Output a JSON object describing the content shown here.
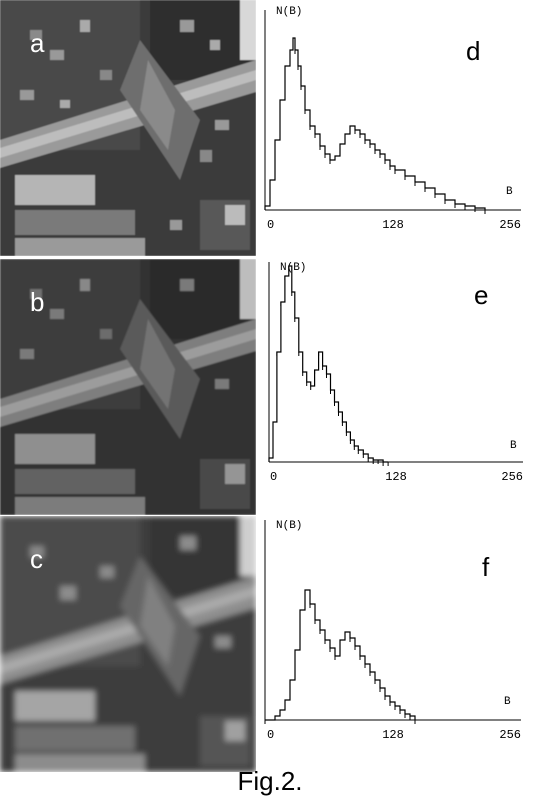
{
  "figure": {
    "caption": "Fig.2.",
    "panels": [
      {
        "image_label": "a",
        "histogram_label": "d"
      },
      {
        "image_label": "b",
        "histogram_label": "e"
      },
      {
        "image_label": "c",
        "histogram_label": "f"
      }
    ]
  },
  "chart_data": [
    {
      "type": "line",
      "title": "",
      "ylabel": "N(B)",
      "xlabel": "B",
      "x_ticks": [
        "0",
        "128",
        "256"
      ],
      "xlim": [
        0,
        256
      ],
      "ylim": [
        0,
        1
      ],
      "series": [
        {
          "x": [
            0,
            5,
            10,
            15,
            20,
            25,
            28,
            30,
            33,
            36,
            40,
            45,
            50,
            55,
            60,
            65,
            70,
            75,
            80,
            85,
            90,
            95,
            100,
            105,
            110,
            115,
            120,
            125,
            130,
            140,
            150,
            160,
            170,
            180,
            190,
            200,
            210,
            220
          ],
          "values": [
            0.02,
            0.15,
            0.35,
            0.55,
            0.72,
            0.8,
            0.86,
            0.8,
            0.72,
            0.62,
            0.5,
            0.42,
            0.38,
            0.32,
            0.28,
            0.25,
            0.27,
            0.33,
            0.38,
            0.42,
            0.4,
            0.38,
            0.35,
            0.33,
            0.3,
            0.28,
            0.25,
            0.22,
            0.2,
            0.17,
            0.14,
            0.11,
            0.08,
            0.05,
            0.03,
            0.02,
            0.01,
            0.0
          ]
        }
      ]
    },
    {
      "type": "line",
      "title": "",
      "ylabel": "N(B)",
      "xlabel": "B",
      "x_ticks": [
        "0",
        "128",
        "256"
      ],
      "xlim": [
        0,
        256
      ],
      "ylim": [
        0,
        1
      ],
      "series": [
        {
          "x": [
            0,
            4,
            8,
            12,
            16,
            20,
            23,
            26,
            30,
            34,
            38,
            42,
            46,
            50,
            54,
            58,
            62,
            66,
            70,
            74,
            78,
            82,
            86,
            90,
            95,
            100,
            105,
            110,
            115,
            120
          ],
          "values": [
            0.02,
            0.2,
            0.55,
            0.8,
            0.93,
            0.98,
            0.85,
            0.72,
            0.55,
            0.45,
            0.4,
            0.38,
            0.46,
            0.55,
            0.48,
            0.44,
            0.36,
            0.3,
            0.25,
            0.2,
            0.15,
            0.11,
            0.08,
            0.06,
            0.04,
            0.02,
            0.01,
            0.01,
            0.0,
            0.0
          ]
        }
      ]
    },
    {
      "type": "line",
      "title": "",
      "ylabel": "N(B)",
      "xlabel": "B",
      "x_ticks": [
        "0",
        "128",
        "256"
      ],
      "xlim": [
        0,
        256
      ],
      "ylim": [
        0,
        1
      ],
      "series": [
        {
          "x": [
            0,
            10,
            15,
            20,
            25,
            30,
            35,
            40,
            45,
            50,
            55,
            60,
            65,
            70,
            75,
            80,
            85,
            90,
            95,
            100,
            105,
            110,
            115,
            120,
            125,
            130,
            135,
            140,
            145,
            150
          ],
          "values": [
            0.0,
            0.02,
            0.05,
            0.1,
            0.2,
            0.35,
            0.55,
            0.65,
            0.58,
            0.5,
            0.45,
            0.4,
            0.36,
            0.32,
            0.4,
            0.44,
            0.41,
            0.37,
            0.32,
            0.28,
            0.24,
            0.2,
            0.16,
            0.12,
            0.09,
            0.07,
            0.05,
            0.03,
            0.02,
            0.0
          ]
        }
      ]
    }
  ]
}
